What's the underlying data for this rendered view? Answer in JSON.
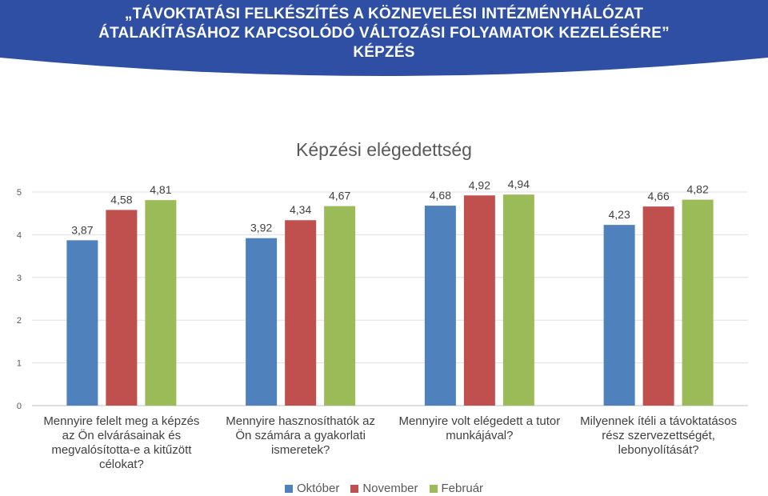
{
  "banner": {
    "line1": "„TÁVOKTATÁSI FELKÉSZÍTÉS A KÖZNEVELÉSI INTÉZMÉNYHÁLÓZAT",
    "line2": "ÁTALAKÍTÁSÁHOZ KAPCSOLÓDÓ VÁLTOZÁSI FOLYAMATOK KEZELÉSÉRE”",
    "line3": "KÉPZÉS",
    "color": "#2e4fa3"
  },
  "chart_data": {
    "type": "bar",
    "title": "Képzési elégedettség",
    "categories": [
      "Mennyire felelt meg a képzés az Ön elvárásainak és megvalósította-e a kitűzött célokat?",
      "Mennyire hasznosíthatók az Ön számára a gyakorlati ismeretek?",
      "Mennyire volt elégedett a tutor munkájával?",
      "Milyennek ítéli a távoktatásos rész szervezettségét, lebonyolítását?"
    ],
    "category_lines": [
      [
        "Mennyire felelt meg a képzés",
        "az Ön elvárásainak és",
        "megvalósította-e a kitűzött",
        "célokat?"
      ],
      [
        "Mennyire hasznosíthatók az",
        "Ön számára a gyakorlati",
        "ismeretek?"
      ],
      [
        "Mennyire volt elégedett a tutor",
        "munkájával?"
      ],
      [
        "Milyennek ítéli a távoktatásos",
        "rész szervezettségét,",
        "lebonyolítását?"
      ]
    ],
    "series": [
      {
        "name": "Október",
        "color": "#4f81bd",
        "values": [
          3.87,
          3.92,
          4.68,
          4.23
        ],
        "labels": [
          "3,87",
          "3,92",
          "4,68",
          "4,23"
        ]
      },
      {
        "name": "November",
        "color": "#c0504d",
        "values": [
          4.58,
          4.34,
          4.92,
          4.66
        ],
        "labels": [
          "4,58",
          "4,34",
          "4,92",
          "4,66"
        ]
      },
      {
        "name": "Február",
        "color": "#9bbb59",
        "values": [
          4.81,
          4.67,
          4.94,
          4.82
        ],
        "labels": [
          "4,81",
          "4,67",
          "4,94",
          "4,82"
        ]
      }
    ],
    "yticks": [
      "0",
      "1",
      "2",
      "3",
      "4",
      "5"
    ],
    "ylim": [
      0,
      5
    ],
    "grid": true,
    "legend_position": "bottom"
  }
}
